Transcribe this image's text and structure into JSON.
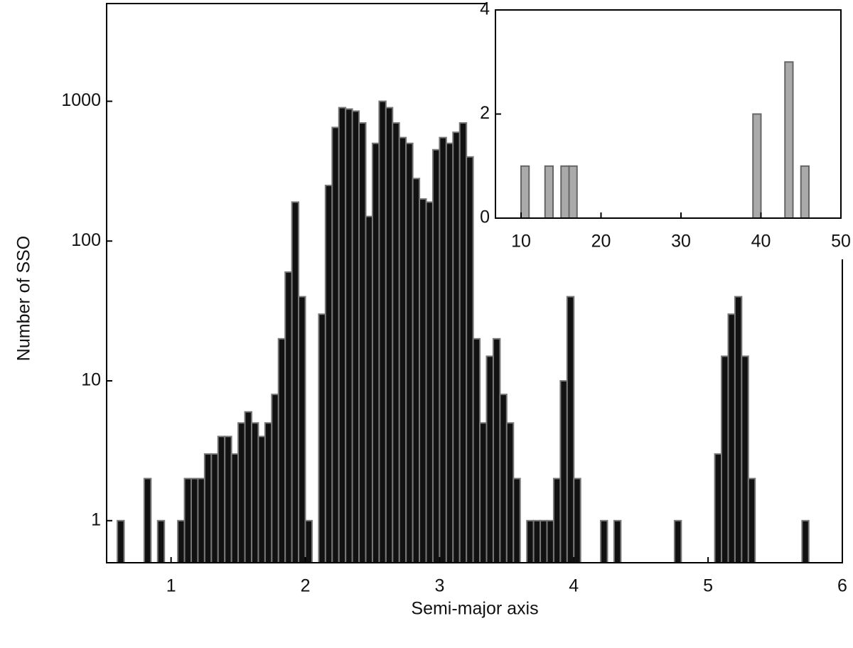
{
  "chart_data": [
    {
      "type": "histogram",
      "xlabel": "Semi-major axis",
      "ylabel": "Number of SSO",
      "bins": [
        0.6,
        0.65,
        0.7,
        0.75,
        0.8,
        0.85,
        0.9,
        0.95,
        1.0,
        1.05,
        1.1,
        1.15,
        1.2,
        1.25,
        1.3,
        1.35,
        1.4,
        1.45,
        1.5,
        1.55,
        1.6,
        1.65,
        1.7,
        1.75,
        1.8,
        1.85,
        1.9,
        1.95,
        2.0,
        2.05,
        2.1,
        2.15,
        2.2,
        2.25,
        2.3,
        2.35,
        2.4,
        2.45,
        2.5,
        2.55,
        2.6,
        2.65,
        2.7,
        2.75,
        2.8,
        2.85,
        2.9,
        2.95,
        3.0,
        3.05,
        3.1,
        3.15,
        3.2,
        3.25,
        3.3,
        3.35,
        3.4,
        3.45,
        3.5,
        3.55,
        3.6,
        3.65,
        3.7,
        3.75,
        3.8,
        3.85,
        3.9,
        3.95,
        4.0,
        4.05,
        4.1,
        4.15,
        4.2,
        4.25,
        4.3,
        4.35,
        4.4,
        4.45,
        4.5,
        4.55,
        4.6,
        4.65,
        4.7,
        4.75,
        4.8,
        4.85,
        4.9,
        4.95,
        5.0,
        5.05,
        5.1,
        5.15,
        5.2,
        5.25,
        5.3,
        5.35,
        5.4,
        5.45,
        5.5,
        5.55,
        5.6,
        5.65,
        5.7,
        5.75,
        5.8
      ],
      "counts": [
        1,
        0,
        0,
        0,
        2,
        0,
        1,
        0,
        0,
        1,
        2,
        2,
        2,
        3,
        3,
        4,
        4,
        3,
        5,
        6,
        5,
        4,
        5,
        8,
        20,
        60,
        190,
        40,
        1,
        0,
        30,
        250,
        650,
        900,
        880,
        850,
        700,
        150,
        500,
        1000,
        900,
        700,
        550,
        500,
        280,
        200,
        190,
        450,
        550,
        500,
        600,
        700,
        400,
        20,
        5,
        15,
        20,
        8,
        5,
        2,
        0,
        1,
        1,
        1,
        1,
        2,
        10,
        40,
        2,
        0,
        0,
        0,
        1,
        0,
        1,
        0,
        0,
        0,
        0,
        0,
        0,
        0,
        0,
        1,
        0,
        0,
        0,
        0,
        0,
        3,
        15,
        30,
        40,
        15,
        2,
        0,
        0,
        0,
        0,
        0,
        0,
        0,
        1,
        0
      ],
      "color": "#111111",
      "edge_color": "#777777",
      "log_y": true,
      "xlim": [
        0.52,
        6.0
      ],
      "xticks": [
        1,
        2,
        3,
        4,
        5,
        6
      ],
      "ylim": [
        0.5,
        5000
      ],
      "yticks": [
        1,
        10,
        100,
        1000
      ]
    },
    {
      "type": "histogram",
      "bins": [
        7,
        8,
        9,
        10,
        11,
        12,
        13,
        14,
        15,
        16,
        17,
        18,
        19,
        20,
        21,
        22,
        23,
        24,
        25,
        26,
        27,
        28,
        29,
        30,
        31,
        32,
        33,
        34,
        35,
        36,
        37,
        38,
        39,
        40,
        41,
        42,
        43,
        44,
        45,
        46,
        47,
        48,
        49,
        50
      ],
      "counts": [
        0,
        0,
        0,
        1,
        0,
        0,
        1,
        0,
        1,
        1,
        0,
        0,
        0,
        0,
        0,
        0,
        0,
        0,
        0,
        0,
        0,
        0,
        0,
        0,
        0,
        0,
        0,
        0,
        0,
        0,
        0,
        0,
        2,
        0,
        0,
        0,
        3,
        0,
        1,
        0,
        0,
        0,
        0
      ],
      "color": "#aaaaaa",
      "edge_color": "#666666",
      "log_y": false,
      "xlim": [
        6.8,
        50
      ],
      "xticks": [
        10,
        20,
        30,
        40,
        50
      ],
      "ylim": [
        0,
        4
      ],
      "yticks": [
        0,
        2,
        4
      ]
    }
  ]
}
